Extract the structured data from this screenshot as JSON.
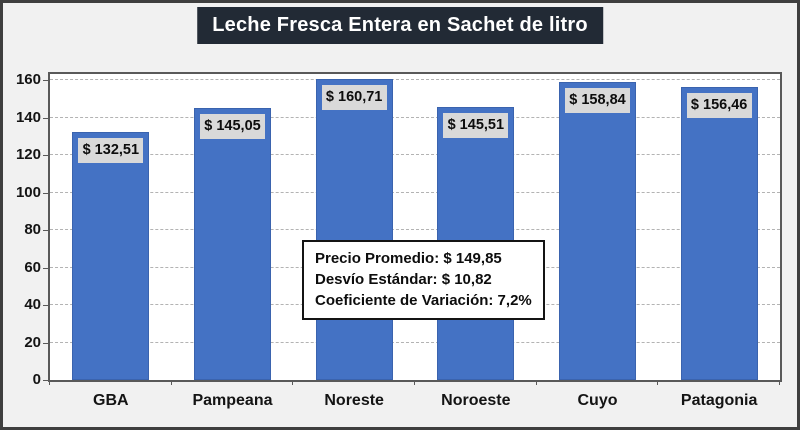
{
  "chart_data": {
    "type": "bar",
    "title": "Leche Fresca Entera en Sachet de litro",
    "categories": [
      "GBA",
      "Pampeana",
      "Noreste",
      "Noroeste",
      "Cuyo",
      "Patagonia"
    ],
    "values": [
      132.51,
      145.05,
      160.71,
      145.51,
      158.84,
      156.46
    ],
    "value_labels": [
      "$ 132,51",
      "$ 145,05",
      "$ 160,71",
      "$ 145,51",
      "$ 158,84",
      "$ 156,46"
    ],
    "xlabel": "",
    "ylabel": "",
    "ylim": [
      0,
      160
    ],
    "ytick_step": 20,
    "yticks": [
      0,
      20,
      40,
      60,
      80,
      100,
      120,
      140,
      160
    ],
    "grid": "horizontal-dashed",
    "legend": "none",
    "annotation": {
      "lines": [
        "Precio Promedio: $ 149,85",
        "Desvío Estándar: $ 10,82",
        "Coeficiente de Variación: 7,2%"
      ]
    },
    "colors": {
      "bar": "#4472C4",
      "bar_border": "#3A63AE",
      "bar_label_bg": "#D9D9D9",
      "title_bg": "#222A35",
      "title_text": "#FFFFFF",
      "plot_bg": "#FFFFFF",
      "page_bg": "#F1F1F1",
      "gridline": "#B3B3B3",
      "axis": "#595959",
      "text": "#141414"
    }
  }
}
